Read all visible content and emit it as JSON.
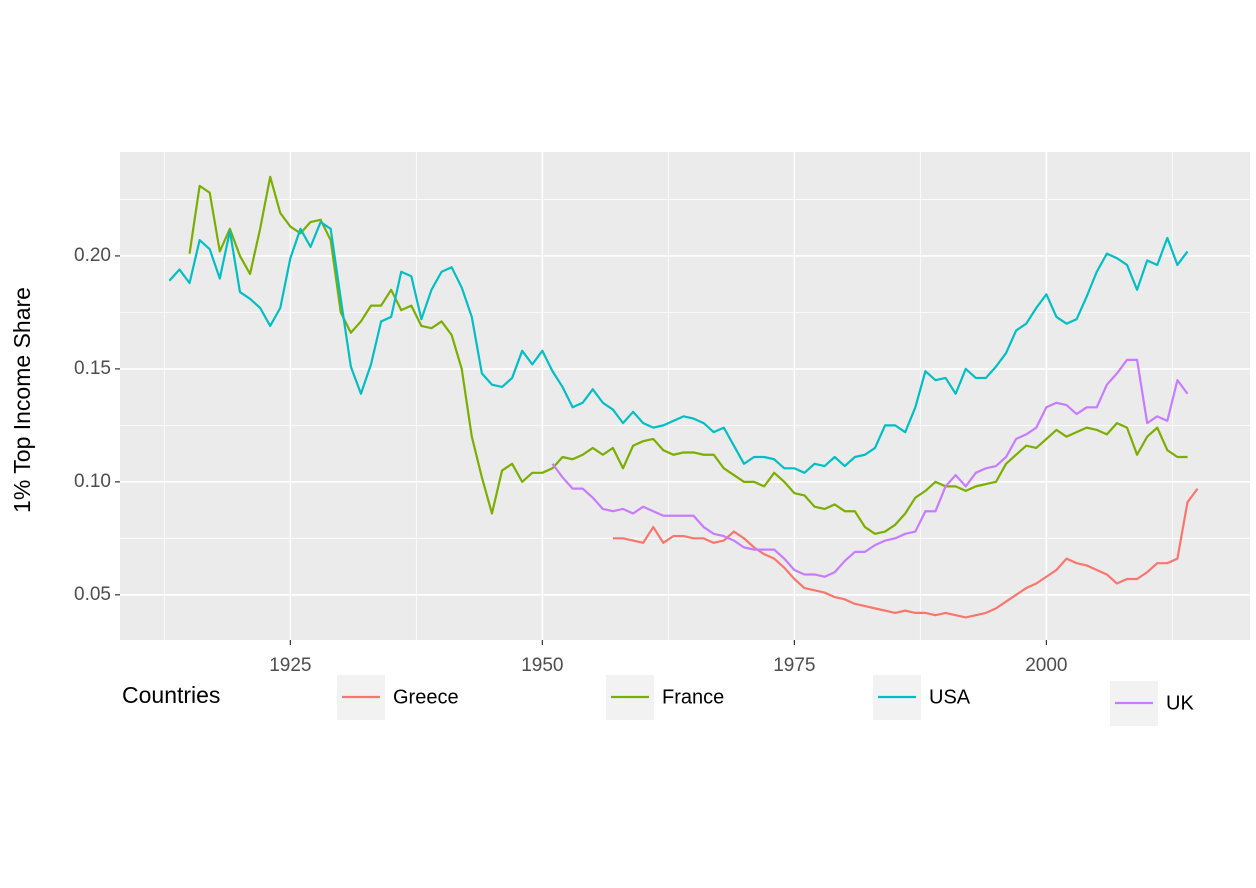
{
  "chart_data": {
    "type": "line",
    "y_label": "1% Top Income Share",
    "legend_title": "Countries",
    "legend_position": "bottom",
    "grid": true,
    "minor_grid": true,
    "xlim": [
      1908.1,
      2020.2
    ],
    "ylim": [
      0.03,
      0.246
    ],
    "xticks": [
      1925,
      1950,
      1975,
      2000
    ],
    "yticks": [
      0.05,
      {
        "value": 0.1,
        "label": "0.10"
      },
      0.15,
      {
        "value": 0.2,
        "label": "0.20"
      }
    ],
    "x": [
      1913,
      1914,
      1915,
      1916,
      1917,
      1918,
      1919,
      1920,
      1921,
      1922,
      1923,
      1924,
      1925,
      1926,
      1927,
      1928,
      1929,
      1930,
      1931,
      1932,
      1933,
      1934,
      1935,
      1936,
      1937,
      1938,
      1939,
      1940,
      1941,
      1942,
      1943,
      1944,
      1945,
      1946,
      1947,
      1948,
      1949,
      1950,
      1951,
      1952,
      1953,
      1954,
      1955,
      1956,
      1957,
      1958,
      1959,
      1960,
      1961,
      1962,
      1963,
      1964,
      1965,
      1966,
      1967,
      1968,
      1969,
      1970,
      1971,
      1972,
      1973,
      1974,
      1975,
      1976,
      1977,
      1978,
      1979,
      1980,
      1981,
      1982,
      1983,
      1984,
      1985,
      1986,
      1987,
      1988,
      1989,
      1990,
      1991,
      1992,
      1993,
      1994,
      1995,
      1996,
      1997,
      1998,
      1999,
      2000,
      2001,
      2002,
      2003,
      2004,
      2005,
      2006,
      2007,
      2008,
      2009,
      2010,
      2011,
      2012,
      2013,
      2014,
      2015
    ],
    "series": [
      {
        "name": "Greece",
        "color": "#F8766D",
        "values": [
          null,
          null,
          null,
          null,
          null,
          null,
          null,
          null,
          null,
          null,
          null,
          null,
          null,
          null,
          null,
          null,
          null,
          null,
          null,
          null,
          null,
          null,
          null,
          null,
          null,
          null,
          null,
          null,
          null,
          null,
          null,
          null,
          null,
          null,
          null,
          null,
          null,
          null,
          null,
          null,
          null,
          null,
          null,
          null,
          0.075,
          0.075,
          0.074,
          0.073,
          0.08,
          0.073,
          0.076,
          0.076,
          0.075,
          0.075,
          0.073,
          0.074,
          0.078,
          0.075,
          0.071,
          0.068,
          0.066,
          0.062,
          0.057,
          0.053,
          0.052,
          0.051,
          0.049,
          0.048,
          0.046,
          0.045,
          0.044,
          0.043,
          0.042,
          0.043,
          0.042,
          0.042,
          0.041,
          0.042,
          0.041,
          0.04,
          0.041,
          0.042,
          0.044,
          0.047,
          0.05,
          0.053,
          0.055,
          0.058,
          0.061,
          0.066,
          0.064,
          0.063,
          0.061,
          0.059,
          0.055,
          0.057,
          0.057,
          0.06,
          0.064,
          0.064,
          0.066,
          0.091,
          0.097
        ]
      },
      {
        "name": "France",
        "color": "#7CAE00",
        "values": [
          null,
          null,
          0.201,
          0.231,
          0.228,
          0.202,
          0.212,
          0.2,
          0.192,
          0.212,
          0.235,
          0.219,
          0.213,
          0.21,
          0.215,
          0.216,
          0.207,
          0.175,
          0.166,
          0.171,
          0.178,
          0.178,
          0.185,
          0.176,
          0.178,
          0.169,
          0.168,
          0.171,
          0.165,
          0.15,
          0.12,
          0.102,
          0.086,
          0.105,
          0.108,
          0.1,
          0.104,
          0.104,
          0.106,
          0.111,
          0.11,
          0.112,
          0.115,
          0.112,
          0.115,
          0.106,
          0.116,
          0.118,
          0.119,
          0.114,
          0.112,
          0.113,
          0.113,
          0.112,
          0.112,
          0.106,
          0.103,
          0.1,
          0.1,
          0.098,
          0.104,
          0.1,
          0.095,
          0.094,
          0.089,
          0.088,
          0.09,
          0.087,
          0.087,
          0.08,
          0.077,
          0.078,
          0.081,
          0.086,
          0.093,
          0.096,
          0.1,
          0.098,
          0.098,
          0.096,
          0.098,
          0.099,
          0.1,
          0.108,
          0.112,
          0.116,
          0.115,
          0.119,
          0.123,
          0.12,
          0.122,
          0.124,
          0.123,
          0.121,
          0.126,
          0.124,
          0.112,
          0.12,
          0.124,
          0.114,
          0.111,
          0.111,
          null
        ]
      },
      {
        "name": "USA",
        "color": "#00BFC4",
        "values": [
          0.189,
          0.194,
          0.188,
          0.207,
          0.203,
          0.19,
          0.211,
          0.184,
          0.181,
          0.177,
          0.169,
          0.177,
          0.199,
          0.212,
          0.204,
          0.215,
          0.212,
          0.181,
          0.151,
          0.139,
          0.152,
          0.171,
          0.173,
          0.193,
          0.191,
          0.172,
          0.185,
          0.193,
          0.195,
          0.186,
          0.173,
          0.148,
          0.143,
          0.142,
          0.146,
          0.158,
          0.152,
          0.158,
          0.149,
          0.142,
          0.133,
          0.135,
          0.141,
          0.135,
          0.132,
          0.126,
          0.131,
          0.126,
          0.124,
          0.125,
          0.127,
          0.129,
          0.128,
          0.126,
          0.122,
          0.124,
          0.116,
          0.108,
          0.111,
          0.111,
          0.11,
          0.106,
          0.106,
          0.104,
          0.108,
          0.107,
          0.111,
          0.107,
          0.111,
          0.112,
          0.115,
          0.125,
          0.125,
          0.122,
          0.133,
          0.149,
          0.145,
          0.146,
          0.139,
          0.15,
          0.146,
          0.146,
          0.151,
          0.157,
          0.167,
          0.17,
          0.177,
          0.183,
          0.173,
          0.17,
          0.172,
          0.182,
          0.193,
          0.201,
          0.199,
          0.196,
          0.185,
          0.198,
          0.196,
          0.208,
          0.196,
          0.202,
          null
        ]
      },
      {
        "name": "UK",
        "color": "#C77CFF",
        "values": [
          null,
          null,
          null,
          null,
          null,
          null,
          null,
          null,
          null,
          null,
          null,
          null,
          null,
          null,
          null,
          null,
          null,
          null,
          null,
          null,
          null,
          null,
          null,
          null,
          null,
          null,
          null,
          null,
          null,
          null,
          null,
          null,
          null,
          null,
          null,
          null,
          null,
          null,
          0.108,
          0.102,
          0.097,
          0.097,
          0.093,
          0.088,
          0.087,
          0.088,
          0.086,
          0.089,
          0.087,
          0.085,
          0.085,
          0.085,
          0.085,
          0.08,
          0.077,
          0.076,
          0.074,
          0.071,
          0.07,
          0.07,
          0.07,
          0.066,
          0.061,
          0.059,
          0.059,
          0.058,
          0.06,
          0.065,
          0.069,
          0.069,
          0.072,
          0.074,
          0.075,
          0.077,
          0.078,
          0.087,
          0.087,
          0.098,
          0.103,
          0.098,
          0.104,
          0.106,
          0.107,
          0.111,
          0.119,
          0.121,
          0.124,
          0.133,
          0.135,
          0.134,
          0.13,
          0.133,
          0.133,
          0.143,
          0.148,
          0.154,
          0.154,
          0.126,
          0.129,
          0.127,
          0.145,
          0.139,
          null
        ]
      }
    ]
  }
}
